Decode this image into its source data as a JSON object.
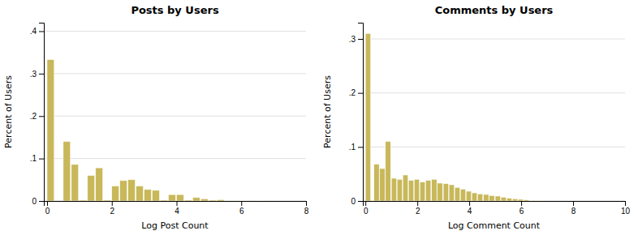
{
  "chart_data": [
    {
      "type": "histogram",
      "title": "Posts by Users",
      "x_label": "Log Post Count",
      "y_label": "Percent of Users",
      "x": [
        0.0,
        0.5,
        0.75,
        1.0,
        1.25,
        1.5,
        1.75,
        2.0,
        2.25,
        2.5,
        2.75,
        3.0,
        3.25,
        3.5,
        3.75,
        4.0,
        4.25,
        4.5,
        4.75,
        5.0,
        5.25,
        5.5,
        5.75,
        6.0,
        6.5,
        7.0
      ],
      "values": [
        0.333,
        0.14,
        0.086,
        0.002,
        0.06,
        0.078,
        0.002,
        0.035,
        0.048,
        0.05,
        0.035,
        0.027,
        0.025,
        0.002,
        0.015,
        0.015,
        0.002,
        0.008,
        0.005,
        0.002,
        0.003,
        0.001,
        0.001,
        0.001,
        0.001,
        0.0
      ],
      "bin_width": 0.22,
      "color": "#c8b85a",
      "xlim": [
        -0.1,
        8
      ],
      "ylim": [
        0,
        0.42
      ],
      "xticks": [
        0,
        2,
        4,
        6,
        8
      ],
      "yticks": [
        0,
        {
          "value": 0.1,
          "label": ".1"
        },
        {
          "value": 0.2,
          "label": ".2"
        },
        {
          "value": 0.3,
          "label": ".3"
        },
        {
          "value": 0.4,
          "label": ".4"
        }
      ],
      "grid": true
    },
    {
      "type": "histogram",
      "title": "Comments by Users",
      "x_label": "Log Comment Count",
      "y_label": "Percent of Users",
      "x": [
        0.0,
        0.33,
        0.55,
        0.77,
        1.0,
        1.22,
        1.44,
        1.66,
        1.88,
        2.1,
        2.32,
        2.55,
        2.77,
        3.0,
        3.22,
        3.44,
        3.66,
        3.88,
        4.1,
        4.32,
        4.55,
        4.77,
        5.0,
        5.22,
        5.44,
        5.66,
        5.88,
        6.1,
        6.32,
        6.55,
        6.77,
        7.0,
        7.5,
        8.0
      ],
      "values": [
        0.31,
        0.068,
        0.06,
        0.11,
        0.042,
        0.04,
        0.048,
        0.038,
        0.04,
        0.035,
        0.038,
        0.04,
        0.033,
        0.032,
        0.03,
        0.025,
        0.022,
        0.018,
        0.015,
        0.013,
        0.012,
        0.01,
        0.009,
        0.007,
        0.005,
        0.004,
        0.003,
        0.002,
        0.001,
        0.001,
        0.001,
        0.0,
        0.0,
        0.0
      ],
      "bin_width": 0.2,
      "color": "#c8b85a",
      "xlim": [
        -0.1,
        10
      ],
      "ylim": [
        0,
        0.33
      ],
      "xticks": [
        0,
        2,
        4,
        6,
        8,
        10
      ],
      "yticks": [
        0,
        {
          "value": 0.1,
          "label": ".1"
        },
        {
          "value": 0.2,
          "label": ".2"
        },
        {
          "value": 0.3,
          "label": ".3"
        }
      ],
      "grid": true
    }
  ]
}
